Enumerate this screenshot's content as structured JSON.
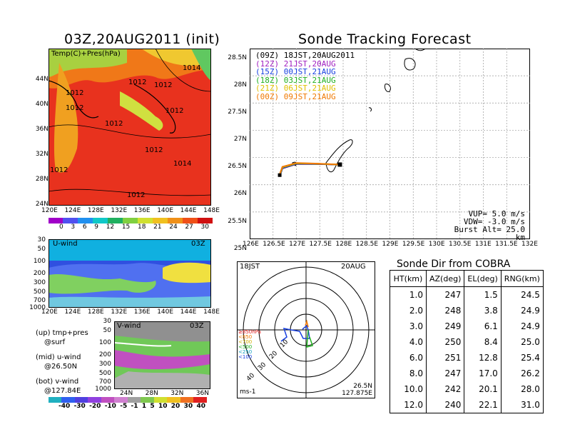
{
  "left_title": "03Z,20AUG2011 (init)",
  "right_title": "Sonde Tracking Forecast",
  "map_panel": {
    "label": "Temp(C)+Pres(hPa)",
    "lat_labels": [
      "44N",
      "40N",
      "36N",
      "32N",
      "28N",
      "24N"
    ],
    "lon_labels": [
      "120E",
      "124E",
      "128E",
      "132E",
      "136E",
      "140E",
      "144E",
      "148E"
    ],
    "isobar_labels": [
      "1014",
      "1012",
      "1012",
      "1012",
      "1012",
      "1012",
      "1012",
      "1012",
      "1014",
      "1012",
      "1012"
    ],
    "colorbar": [
      "0",
      "3",
      "6",
      "9",
      "12",
      "15",
      "18",
      "21",
      "24",
      "27",
      "30"
    ]
  },
  "u_panel": {
    "label": "U-wind",
    "time": "03Z",
    "y_labels": [
      "30",
      "50",
      "100",
      "200",
      "300",
      "500",
      "700",
      "1000"
    ],
    "x_labels": [
      "120E",
      "124E",
      "128E",
      "132E",
      "136E",
      "140E",
      "144E",
      "148E"
    ]
  },
  "v_panel": {
    "label": "V-wind",
    "time": "03Z",
    "y_labels": [
      "30",
      "50",
      "100",
      "200",
      "300",
      "500",
      "700",
      "1000"
    ],
    "x_labels": [
      "24N",
      "28N",
      "32N",
      "36N"
    ]
  },
  "legend_notes": [
    {
      "a": "(up) tmp+pres",
      "b": "@surf"
    },
    {
      "a": "(mid) u-wind",
      "b": "@26.50N"
    },
    {
      "a": "(bot) v-wind",
      "b": "@127.84E"
    }
  ],
  "wind_colorbar": [
    "-40",
    "-30",
    "-20",
    "-10",
    "-5",
    "-1",
    "1",
    "5",
    "10",
    "20",
    "30",
    "40"
  ],
  "track": {
    "launches": [
      {
        "label": "(09Z)  18JST,20AUG2011",
        "color": "#000000"
      },
      {
        "label": "(12Z)  21JST,20AUG",
        "color": "#a020c0"
      },
      {
        "label": "(15Z)  00JST,21AUG",
        "color": "#1840e0"
      },
      {
        "label": "(18Z)  03JST,21AUG",
        "color": "#20b020"
      },
      {
        "label": "(21Z)  06JST,21AUG",
        "color": "#e0c000"
      },
      {
        "label": "(00Z)  09JST,21AUG",
        "color": "#f07800"
      }
    ],
    "lat_labels": [
      "28.5N",
      "28N",
      "27.5N",
      "27N",
      "26.5N",
      "26N",
      "25.5N",
      "25N"
    ],
    "lon_labels": [
      "126E",
      "126.5E",
      "127E",
      "127.5E",
      "128E",
      "128.5E",
      "129E",
      "129.5E",
      "130E",
      "130.5E",
      "131E",
      "131.5E",
      "132E"
    ],
    "params": [
      "VUP=  5.0 m/s",
      "VDW= -3.0 m/s",
      "Burst Alt= 25.0 km"
    ]
  },
  "polar": {
    "time_left": "18JST",
    "date_right": "20AUG",
    "pressure_legend": [
      "≥850hPa",
      "<850",
      "<700",
      "<500",
      "<250",
      "<100"
    ],
    "ring_labels": [
      "10",
      "20",
      "30",
      "40"
    ],
    "loc_lat": "26.5N",
    "loc_lon": "127.875E",
    "unit": "ms-1"
  },
  "sonde_dir": {
    "title": "Sonde Dir from COBRA",
    "headers": [
      "HT(km)",
      "AZ(deg)",
      "EL(deg)",
      "RNG(km)"
    ],
    "rows": [
      [
        "1.0",
        "247",
        "1.5",
        "24.5"
      ],
      [
        "2.0",
        "248",
        "3.8",
        "24.9"
      ],
      [
        "3.0",
        "249",
        "6.1",
        "24.9"
      ],
      [
        "4.0",
        "250",
        "8.4",
        "25.0"
      ],
      [
        "6.0",
        "251",
        "12.8",
        "25.4"
      ],
      [
        "8.0",
        "247",
        "17.0",
        "26.2"
      ],
      [
        "10.0",
        "242",
        "20.1",
        "28.0"
      ],
      [
        "12.0",
        "240",
        "22.1",
        "31.0"
      ]
    ]
  },
  "chart_data": [
    {
      "type": "heatmap",
      "title": "03Z,20AUG2011 (init)",
      "label": "Temp(C)+Pres(hPa)",
      "colorbar_ticks": [
        0,
        3,
        6,
        9,
        12,
        15,
        18,
        21,
        24,
        27,
        30
      ]
    },
    {
      "type": "heatmap",
      "label": "U-wind",
      "time": "03Z",
      "colorbar_ticks": [
        -40,
        -30,
        -20,
        -10,
        -5,
        -1,
        1,
        5,
        10,
        20,
        30,
        40
      ]
    },
    {
      "type": "heatmap",
      "label": "V-wind",
      "time": "03Z"
    },
    {
      "type": "line",
      "title": "Sonde Tracking Forecast",
      "xlim": [
        126,
        132
      ],
      "ylim": [
        25,
        28.5
      ],
      "series": [
        {
          "name": "(09Z)  18JST,20AUG2011",
          "x": [
            127.93,
            127.4,
            127.0,
            126.7,
            126.65
          ],
          "y": [
            26.37,
            26.38,
            26.38,
            26.3,
            26.17
          ]
        }
      ]
    },
    {
      "type": "table",
      "title": "Sonde Dir from COBRA",
      "columns": [
        "HT(km)",
        "AZ(deg)",
        "EL(deg)",
        "RNG(km)"
      ],
      "rows": [
        [
          1.0,
          247,
          1.5,
          24.5
        ],
        [
          2.0,
          248,
          3.8,
          24.9
        ],
        [
          3.0,
          249,
          6.1,
          24.9
        ],
        [
          4.0,
          250,
          8.4,
          25.0
        ],
        [
          6.0,
          251,
          12.8,
          25.4
        ],
        [
          8.0,
          247,
          17.0,
          26.2
        ],
        [
          10.0,
          242,
          20.1,
          28.0
        ],
        [
          12.0,
          240,
          22.1,
          31.0
        ]
      ]
    }
  ]
}
